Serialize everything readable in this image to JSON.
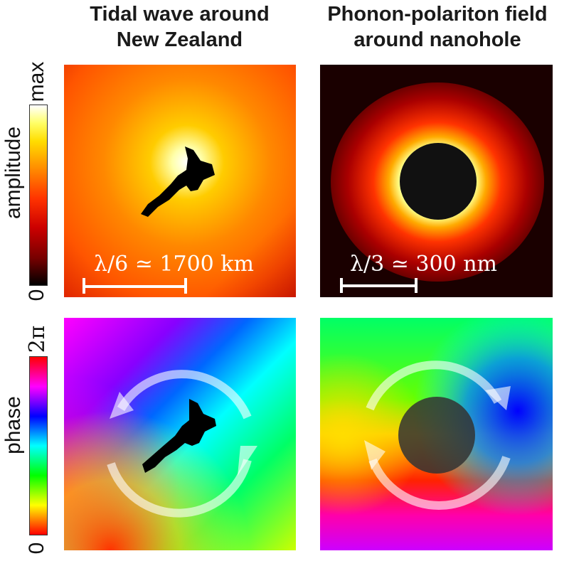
{
  "columns": [
    {
      "title_line1": "Tidal wave around",
      "title_line2": "New Zealand"
    },
    {
      "title_line1": "Phonon-polariton field",
      "title_line2": "around nanohole"
    }
  ],
  "rows": [
    {
      "label": "amplitude",
      "colorbar_top": "max",
      "colorbar_bottom": "0"
    },
    {
      "label": "phase",
      "colorbar_top": "2π",
      "colorbar_bottom": "0"
    }
  ],
  "scale_bars": {
    "tidal": "λ/6 ≃ 1700 km",
    "nanohole": "λ/3 ≃ 300 nm"
  },
  "colors": {
    "amplitude_scale": [
      "#000000",
      "#cc0000",
      "#ff5500",
      "#ffaa00",
      "#ffff33",
      "#ffffff"
    ],
    "phase_scale": [
      "#ff0000",
      "#ffff00",
      "#00ff00",
      "#00ffff",
      "#0000ff",
      "#ff00ff",
      "#ff0000"
    ]
  }
}
